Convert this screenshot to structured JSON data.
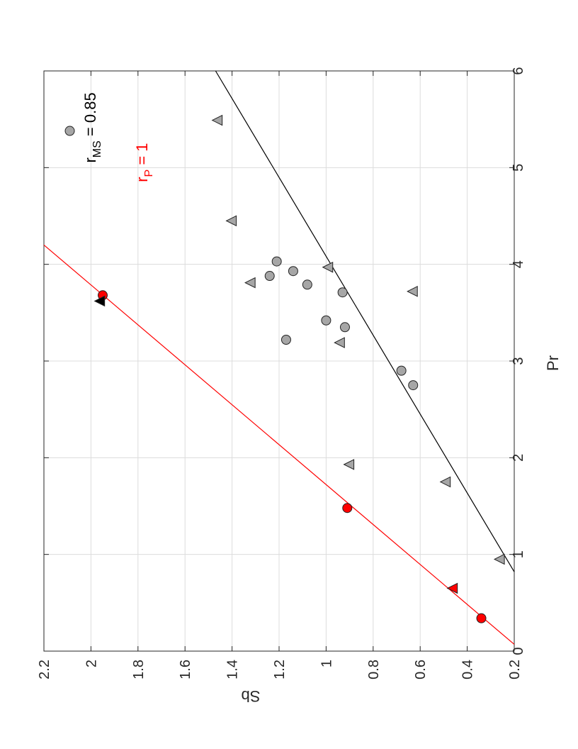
{
  "chart_data": {
    "type": "scatter",
    "orientation": "rotated-90-clockwise",
    "xlabel": "Pr",
    "ylabel": "Sb",
    "xlim": [
      0,
      6
    ],
    "ylim": [
      0.2,
      2.2
    ],
    "xticks": [
      "0",
      "1",
      "2",
      "3",
      "4",
      "5",
      "6"
    ],
    "yticks": [
      "0.2",
      "0.4",
      "0.6",
      "0.8",
      "1",
      "1.2",
      "1.4",
      "1.6",
      "1.8",
      "2",
      "2.2"
    ],
    "grid": true,
    "series": [
      {
        "marker": "circle",
        "color": "#a6a6a6",
        "points": [
          [
            5.38,
            2.09
          ],
          [
            4.03,
            1.21
          ],
          [
            3.93,
            1.14
          ],
          [
            3.88,
            1.24
          ],
          [
            3.79,
            1.08
          ],
          [
            3.71,
            0.93
          ],
          [
            3.42,
            1.0
          ],
          [
            3.35,
            0.92
          ],
          [
            3.22,
            1.17
          ],
          [
            2.9,
            0.68
          ],
          [
            2.75,
            0.63
          ]
        ]
      },
      {
        "marker": "triangle",
        "color": "#a6a6a6",
        "points": [
          [
            5.49,
            1.46
          ],
          [
            4.45,
            1.4
          ],
          [
            3.97,
            0.99
          ],
          [
            3.81,
            1.32
          ],
          [
            3.72,
            0.63
          ],
          [
            3.19,
            0.94
          ],
          [
            1.93,
            0.9
          ],
          [
            1.75,
            0.49
          ],
          [
            0.95,
            0.26
          ]
        ]
      },
      {
        "marker": "circle",
        "color": "#ff0000",
        "points": [
          [
            3.68,
            1.95
          ],
          [
            1.48,
            0.91
          ],
          [
            0.34,
            0.34
          ]
        ]
      },
      {
        "marker": "triangle",
        "color": "#ff0000",
        "points": [
          [
            0.65,
            0.46
          ]
        ]
      },
      {
        "marker": "triangle",
        "color": "#000000",
        "points": [
          [
            3.62,
            1.96
          ]
        ]
      }
    ],
    "fit_lines": [
      {
        "color": "#000000",
        "points": [
          [
            0.82,
            0.2
          ],
          [
            6.0,
            1.47
          ]
        ]
      },
      {
        "color": "#ff0000",
        "points": [
          [
            0.07,
            0.2
          ],
          [
            4.2,
            2.2
          ]
        ]
      }
    ],
    "annotations": [
      {
        "id": "rms",
        "text_main": "r",
        "text_sub": "MS",
        "text_rest": " = 0.85",
        "color": "#000000",
        "x": 5.05,
        "y": 1.98
      },
      {
        "id": "rp",
        "text_main": "r",
        "text_sub": "P",
        "text_rest": " = 1",
        "color": "#ff0000",
        "x": 4.85,
        "y": 1.76
      }
    ]
  }
}
